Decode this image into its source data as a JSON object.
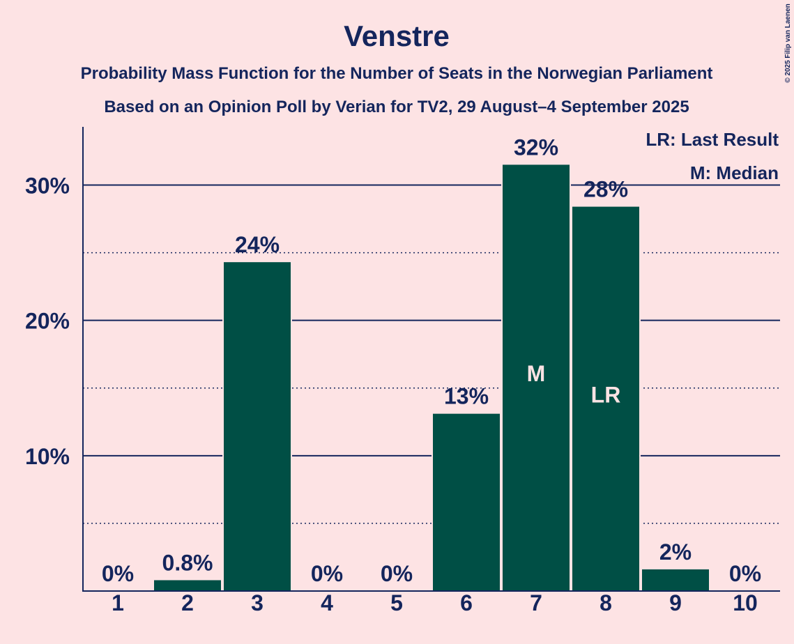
{
  "chart_data": {
    "type": "bar",
    "title": "Venstre",
    "subtitle1": "Probability Mass Function for the Number of Seats in the Norwegian Parliament",
    "subtitle2": "Based on an Opinion Poll by Verian for TV2, 29 August–4 September 2025",
    "categories": [
      "1",
      "2",
      "3",
      "4",
      "5",
      "6",
      "7",
      "8",
      "9",
      "10"
    ],
    "values": [
      0,
      0.8,
      24.3,
      0,
      0,
      13.1,
      31.5,
      28.4,
      1.6,
      0
    ],
    "data_labels": [
      "0%",
      "0.8%",
      "24%",
      "0%",
      "0%",
      "13%",
      "32%",
      "28%",
      "2%",
      "0%"
    ],
    "bar_markers": [
      {
        "category": "7",
        "text": "M"
      },
      {
        "category": "8",
        "text": "LR"
      }
    ],
    "ylim": [
      0,
      34.3
    ],
    "y_major_ticks": [
      10,
      20,
      30
    ],
    "y_major_tick_labels": [
      "10%",
      "20%",
      "30%"
    ],
    "y_minor_ticks": [
      5,
      15,
      25
    ],
    "legend": [
      "LR: Last Result",
      "M: Median"
    ],
    "legend_position": "top-right",
    "xlabel": "",
    "ylabel": "",
    "colors": {
      "background": "#fde3e4",
      "bar": "#004f45",
      "text": "#14255c"
    }
  },
  "copyright": "© 2025 Filip van Laenen"
}
